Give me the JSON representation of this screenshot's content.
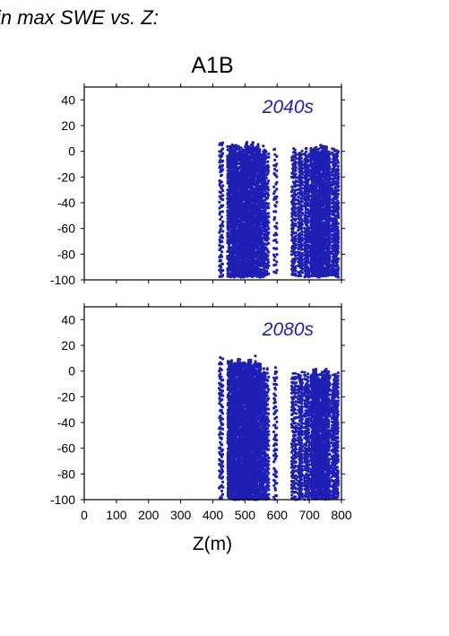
{
  "page_title": "in max SWE vs. Z:",
  "colors": {
    "points": "#1f1fb4",
    "label": "#1f1fb4",
    "frame": "#000000"
  },
  "chart_data": {
    "type": "scatter",
    "title": "A1B",
    "xlabel": "Z(m)",
    "ylabel": "",
    "xlim": [
      0,
      800
    ],
    "ylim": [
      -100,
      50
    ],
    "x_ticks": [
      0,
      100,
      200,
      300,
      400,
      500,
      600,
      700,
      800
    ],
    "y_ticks": [
      -100,
      -80,
      -60,
      -40,
      -20,
      0,
      20,
      40
    ],
    "grid": false,
    "panels": [
      {
        "label": "2040s",
        "y_top": 8,
        "y_bottom": -98,
        "clusters": [
          {
            "x": [
              420,
              432
            ],
            "top": 7,
            "density": 0.5
          },
          {
            "x": [
              446,
              460
            ],
            "top": 6,
            "density": 1.1
          },
          {
            "x": [
              460,
              475
            ],
            "top": 5,
            "density": 1.3
          },
          {
            "x": [
              475,
              490
            ],
            "top": 6,
            "density": 1.0
          },
          {
            "x": [
              490,
              510
            ],
            "top": 8,
            "density": 1.4
          },
          {
            "x": [
              510,
              530
            ],
            "top": 7,
            "density": 1.2
          },
          {
            "x": [
              530,
              548
            ],
            "top": 6,
            "density": 1.1
          },
          {
            "x": [
              548,
              565
            ],
            "top": 5,
            "density": 0.9
          },
          {
            "x": [
              565,
              575
            ],
            "top": 2,
            "density": 0.6
          },
          {
            "x": [
              590,
              600
            ],
            "top": 4,
            "density": 0.4
          },
          {
            "x": [
              645,
              660
            ],
            "top": 3,
            "density": 0.7
          },
          {
            "x": [
              665,
              680
            ],
            "top": 2,
            "density": 0.8
          },
          {
            "x": [
              685,
              700
            ],
            "top": 3,
            "density": 0.9
          },
          {
            "x": [
              705,
              725
            ],
            "top": 5,
            "density": 1.3
          },
          {
            "x": [
              725,
              745
            ],
            "top": 6,
            "density": 1.2
          },
          {
            "x": [
              745,
              765
            ],
            "top": 5,
            "density": 1.1
          },
          {
            "x": [
              770,
              792
            ],
            "top": 4,
            "density": 0.9
          }
        ]
      },
      {
        "label": "2080s",
        "y_top": 14,
        "y_bottom": -100,
        "clusters": [
          {
            "x": [
              420,
              432
            ],
            "top": 13,
            "density": 0.5
          },
          {
            "x": [
              446,
              460
            ],
            "top": 12,
            "density": 1.1
          },
          {
            "x": [
              460,
              475
            ],
            "top": 10,
            "density": 1.3
          },
          {
            "x": [
              475,
              492
            ],
            "top": 12,
            "density": 1.2
          },
          {
            "x": [
              492,
              512
            ],
            "top": 8,
            "density": 1.4
          },
          {
            "x": [
              512,
              532
            ],
            "top": 10,
            "density": 1.3
          },
          {
            "x": [
              532,
              548
            ],
            "top": 12,
            "density": 1.1
          },
          {
            "x": [
              548,
              565
            ],
            "top": 6,
            "density": 1.0
          },
          {
            "x": [
              565,
              575
            ],
            "top": 2,
            "density": 0.6
          },
          {
            "x": [
              590,
              600
            ],
            "top": 3,
            "density": 0.5
          },
          {
            "x": [
              645,
              660
            ],
            "top": 2,
            "density": 0.7
          },
          {
            "x": [
              665,
              680
            ],
            "top": 3,
            "density": 0.8
          },
          {
            "x": [
              685,
              700
            ],
            "top": 0,
            "density": 0.9
          },
          {
            "x": [
              705,
              725
            ],
            "top": 2,
            "density": 1.3
          },
          {
            "x": [
              725,
              745
            ],
            "top": 1,
            "density": 1.2
          },
          {
            "x": [
              745,
              765
            ],
            "top": 5,
            "density": 1.1
          },
          {
            "x": [
              770,
              792
            ],
            "top": 2,
            "density": 0.9
          }
        ]
      }
    ]
  }
}
